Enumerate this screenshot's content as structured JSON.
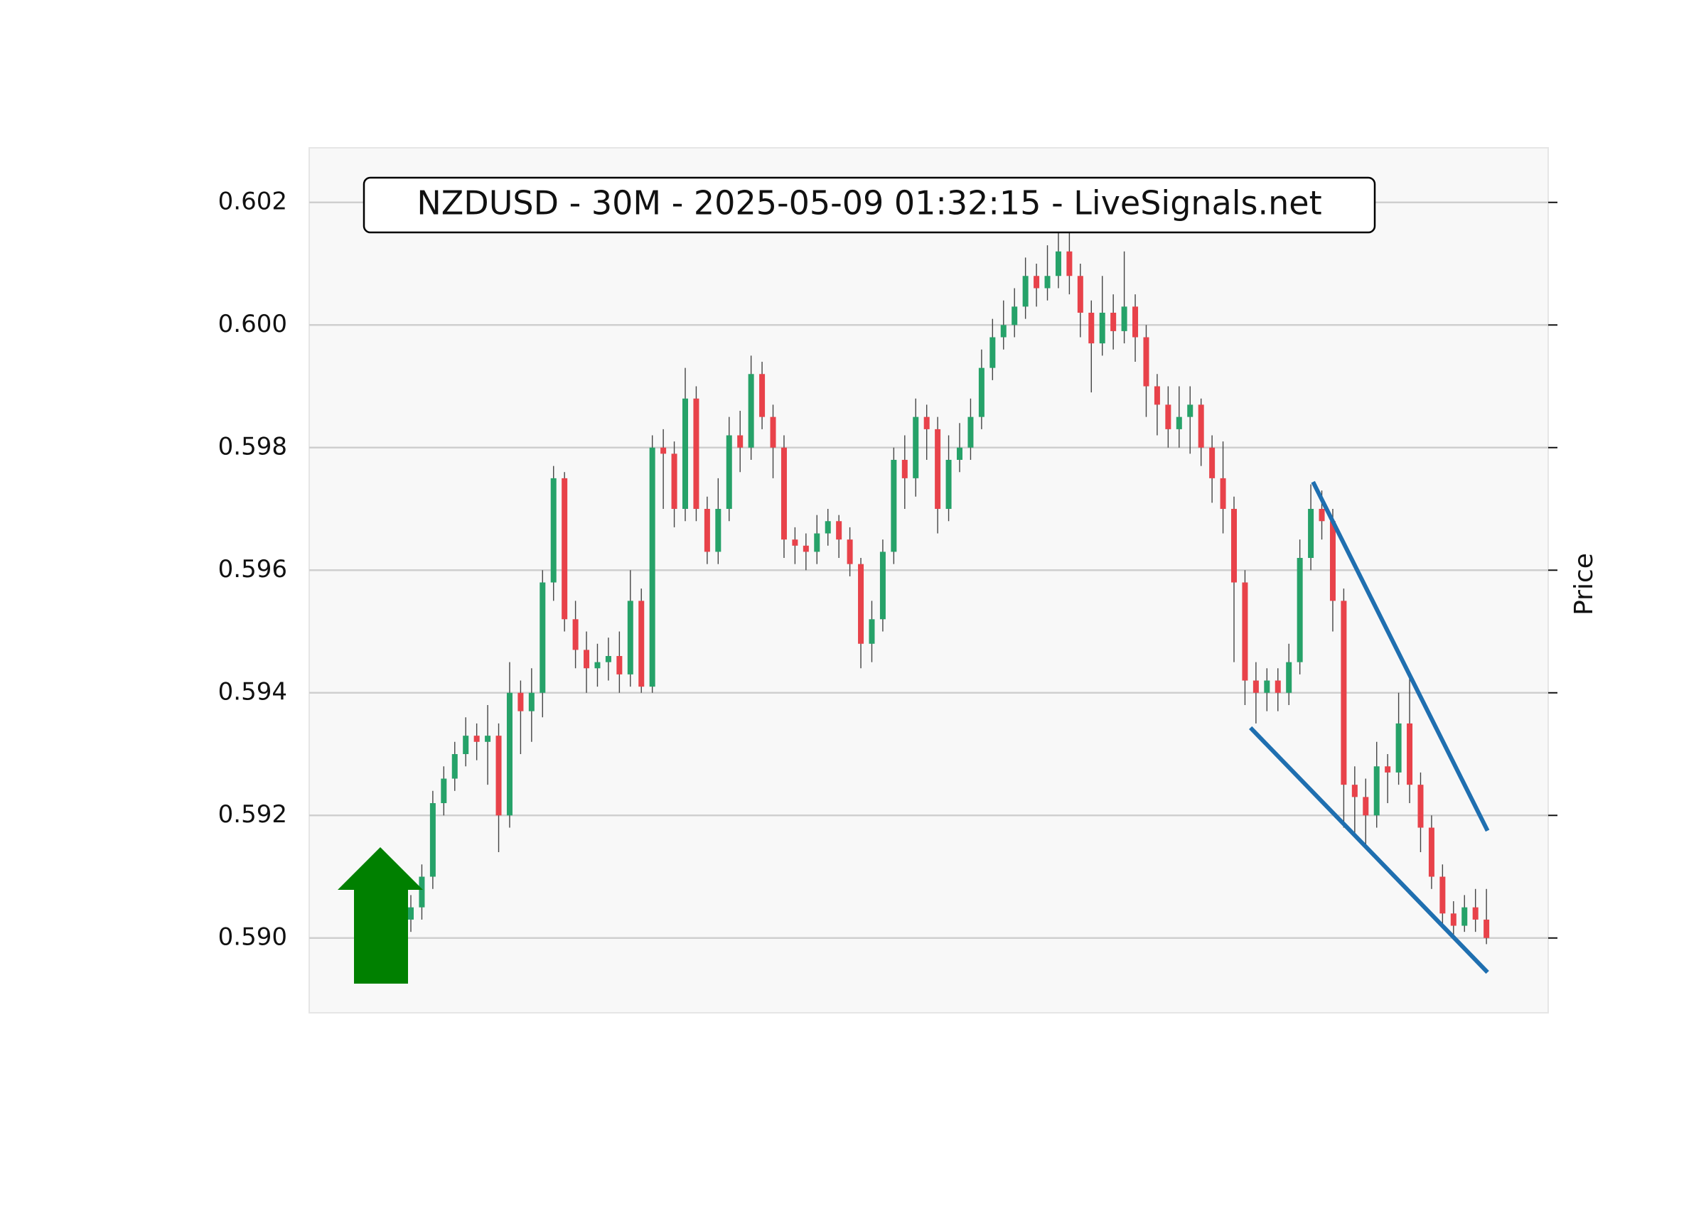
{
  "chart_data": {
    "type": "candlestick",
    "title": "NZDUSD - 30M - 2025-05-09 01:32:15 - LiveSignals.net",
    "y_label": "Price",
    "up_color": "#26a269",
    "down_color": "#e8424a",
    "trend_color": "#1f6fb0",
    "grid": true,
    "ylim": [
      0.58878,
      0.60289
    ],
    "yticks": [
      {
        "value": 0.59,
        "label": "0.590"
      },
      0.592,
      0.594,
      0.596,
      0.598,
      {
        "value": 0.6,
        "label": "0.600"
      },
      0.602
    ],
    "open": [
      0.5903,
      0.5905,
      0.591,
      0.5922,
      0.5926,
      0.593,
      0.5933,
      0.5932,
      0.5933,
      0.592,
      0.594,
      0.5937,
      0.594,
      0.5958,
      0.5975,
      0.5952,
      0.5947,
      0.5944,
      0.5945,
      0.5946,
      0.5943,
      0.5955,
      0.5941,
      0.598,
      0.5979,
      0.597,
      0.5988,
      0.597,
      0.5963,
      0.597,
      0.5982,
      0.598,
      0.5992,
      0.5985,
      0.598,
      0.5965,
      0.5964,
      0.5963,
      0.5966,
      0.5968,
      0.5965,
      0.5961,
      0.5948,
      0.5952,
      0.5963,
      0.5978,
      0.5975,
      0.5985,
      0.5983,
      0.597,
      0.5978,
      0.598,
      0.5985,
      0.5993,
      0.5998,
      0.6,
      0.6003,
      0.6008,
      0.6006,
      0.6008,
      0.6012,
      0.6008,
      0.6002,
      0.5997,
      0.6002,
      0.5999,
      0.6003,
      0.5998,
      0.599,
      0.5987,
      0.5983,
      0.5985,
      0.5987,
      0.598,
      0.5975,
      0.597,
      0.5958,
      0.5942,
      0.594,
      0.5942,
      0.594,
      0.5945,
      0.5962,
      0.597,
      0.5968,
      0.5955,
      0.5925,
      0.5923,
      0.592,
      0.5928,
      0.5927,
      0.5935,
      0.5925,
      0.5918,
      0.591,
      0.5904,
      0.5902,
      0.5905,
      0.5903
    ],
    "high": [
      0.5907,
      0.5912,
      0.5924,
      0.5928,
      0.5932,
      0.5936,
      0.5935,
      0.5938,
      0.5935,
      0.5945,
      0.5942,
      0.5944,
      0.596,
      0.5977,
      0.5976,
      0.5955,
      0.595,
      0.5948,
      0.5949,
      0.595,
      0.596,
      0.5957,
      0.5982,
      0.5983,
      0.5981,
      0.5993,
      0.599,
      0.5972,
      0.5975,
      0.5985,
      0.5986,
      0.5995,
      0.5994,
      0.5987,
      0.5982,
      0.5967,
      0.5966,
      0.5969,
      0.597,
      0.5969,
      0.5967,
      0.5962,
      0.5955,
      0.5965,
      0.598,
      0.5982,
      0.5988,
      0.5987,
      0.5985,
      0.5982,
      0.5984,
      0.5988,
      0.5996,
      0.6001,
      0.6004,
      0.6006,
      0.6011,
      0.601,
      0.6013,
      0.6015,
      0.6015,
      0.601,
      0.6004,
      0.6008,
      0.6005,
      0.6012,
      0.6005,
      0.6,
      0.5992,
      0.599,
      0.599,
      0.599,
      0.5988,
      0.5982,
      0.5981,
      0.5972,
      0.596,
      0.5945,
      0.5944,
      0.5944,
      0.5948,
      0.5965,
      0.5974,
      0.5973,
      0.597,
      0.5957,
      0.5928,
      0.5926,
      0.5932,
      0.593,
      0.594,
      0.5943,
      0.5927,
      0.592,
      0.5912,
      0.5906,
      0.5907,
      0.5908,
      0.5908
    ],
    "low": [
      0.5901,
      0.5903,
      0.5908,
      0.592,
      0.5924,
      0.5928,
      0.5929,
      0.5925,
      0.5914,
      0.5918,
      0.593,
      0.5932,
      0.5936,
      0.5955,
      0.595,
      0.5944,
      0.594,
      0.5941,
      0.5942,
      0.594,
      0.5941,
      0.594,
      0.594,
      0.597,
      0.5967,
      0.5968,
      0.5968,
      0.5961,
      0.5961,
      0.5968,
      0.5976,
      0.5978,
      0.5983,
      0.5975,
      0.5962,
      0.5961,
      0.596,
      0.5961,
      0.5964,
      0.5962,
      0.5959,
      0.5944,
      0.5945,
      0.595,
      0.5961,
      0.597,
      0.5972,
      0.5978,
      0.5966,
      0.5968,
      0.5976,
      0.5978,
      0.5983,
      0.5991,
      0.5996,
      0.5998,
      0.6001,
      0.6003,
      0.6004,
      0.6006,
      0.6005,
      0.5998,
      0.5989,
      0.5995,
      0.5996,
      0.5997,
      0.5994,
      0.5985,
      0.5982,
      0.598,
      0.598,
      0.5979,
      0.5977,
      0.5971,
      0.5966,
      0.5945,
      0.5938,
      0.5935,
      0.5937,
      0.5937,
      0.5938,
      0.5943,
      0.596,
      0.5965,
      0.595,
      0.5918,
      0.5917,
      0.5915,
      0.5918,
      0.5922,
      0.5925,
      0.5922,
      0.5914,
      0.5908,
      0.5902,
      0.59,
      0.5901,
      0.5901,
      0.5899
    ],
    "close": [
      0.5905,
      0.591,
      0.5922,
      0.5926,
      0.593,
      0.5933,
      0.5932,
      0.5933,
      0.592,
      0.594,
      0.5937,
      0.594,
      0.5958,
      0.5975,
      0.5952,
      0.5947,
      0.5944,
      0.5945,
      0.5946,
      0.5943,
      0.5955,
      0.5941,
      0.598,
      0.5979,
      0.597,
      0.5988,
      0.597,
      0.5963,
      0.597,
      0.5982,
      0.598,
      0.5992,
      0.5985,
      0.598,
      0.5965,
      0.5964,
      0.5963,
      0.5966,
      0.5968,
      0.5965,
      0.5961,
      0.5948,
      0.5952,
      0.5963,
      0.5978,
      0.5975,
      0.5985,
      0.5983,
      0.597,
      0.5978,
      0.598,
      0.5985,
      0.5993,
      0.5998,
      0.6,
      0.6003,
      0.6008,
      0.6006,
      0.6008,
      0.6012,
      0.6008,
      0.6002,
      0.5997,
      0.6002,
      0.5999,
      0.6003,
      0.5998,
      0.599,
      0.5987,
      0.5983,
      0.5985,
      0.5987,
      0.598,
      0.5975,
      0.597,
      0.5958,
      0.5942,
      0.594,
      0.5942,
      0.594,
      0.5945,
      0.5962,
      0.597,
      0.5968,
      0.5955,
      0.5925,
      0.5923,
      0.592,
      0.5928,
      0.5927,
      0.5935,
      0.5925,
      0.5918,
      0.591,
      0.5904,
      0.5902,
      0.5905,
      0.5903,
      0.59
    ],
    "trend_lines": [
      {
        "x": [
          82.2,
          98.1
        ],
        "y": [
          0.59744,
          0.59175
        ]
      },
      {
        "x": [
          76.5,
          98.1
        ],
        "y": [
          0.59343,
          0.58944
        ]
      }
    ]
  }
}
